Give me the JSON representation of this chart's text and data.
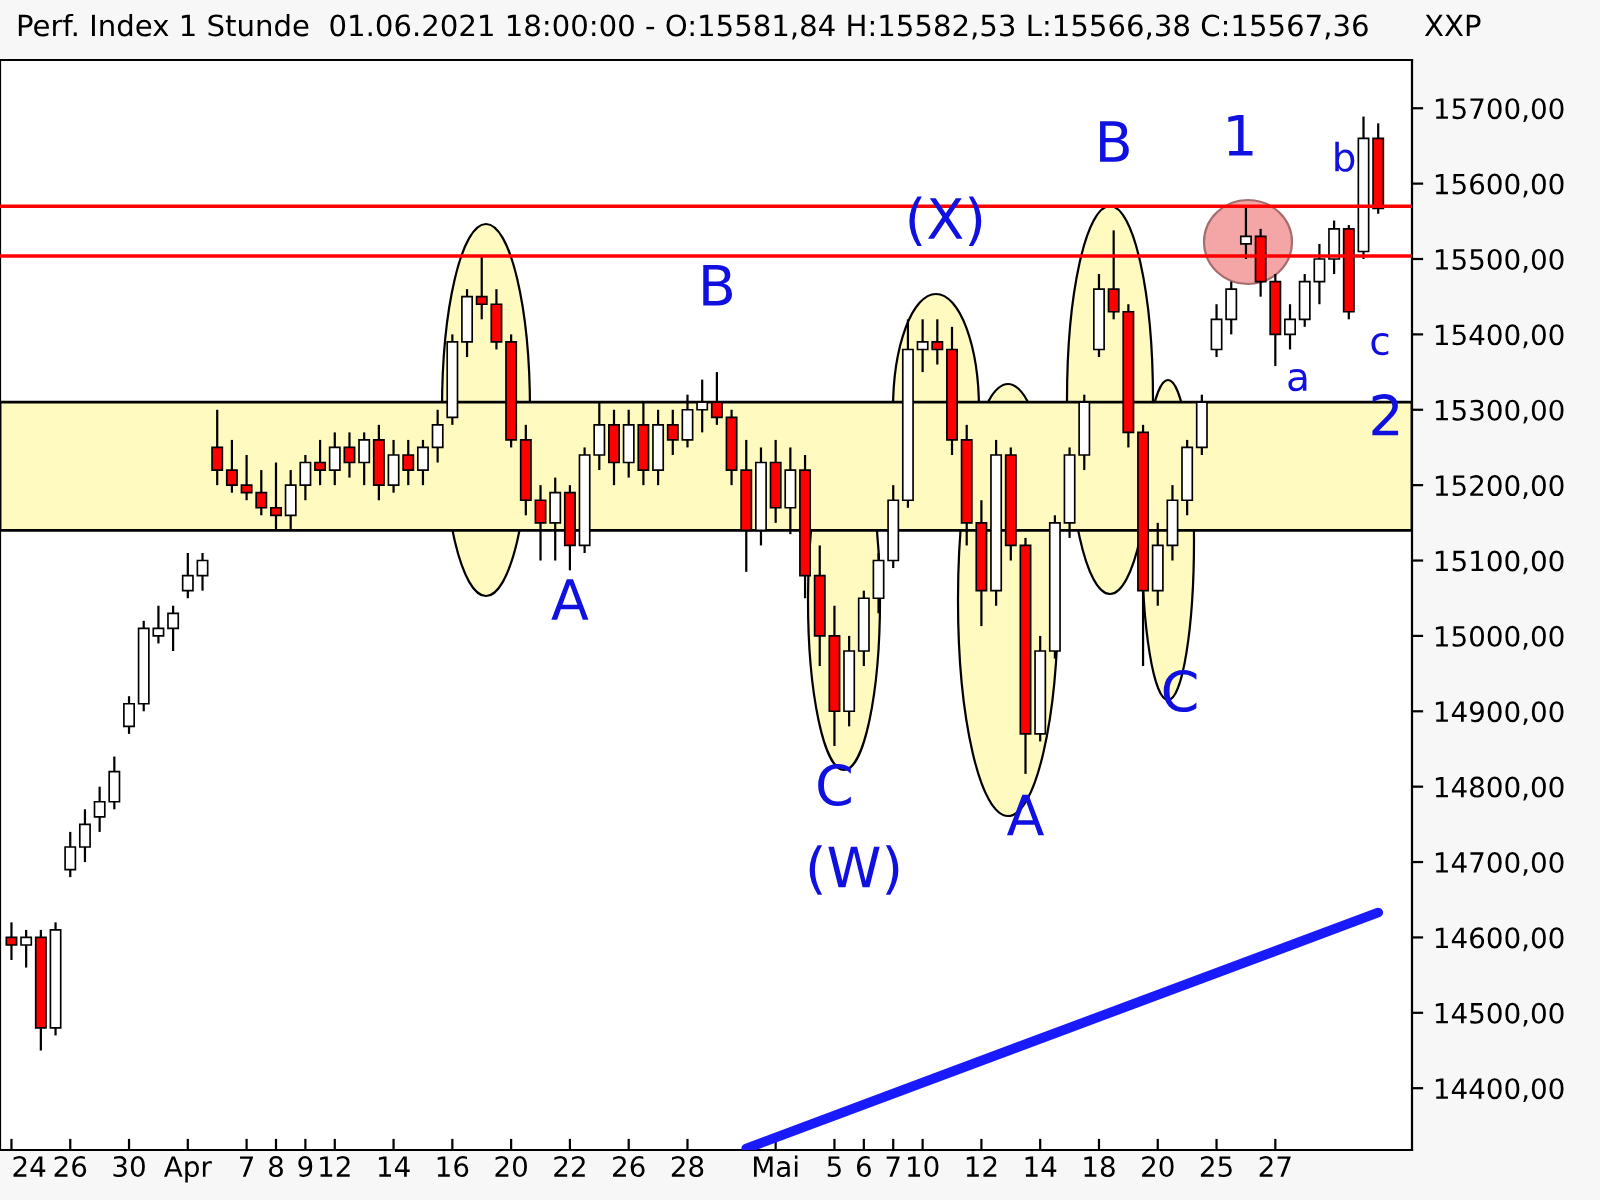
{
  "chart_data": {
    "type": "candlestick",
    "title": "Perf. Index 1 Stunde  01.06.2021 18:00:00 - O:15581,84 H:15582,53 L:15566,38 C:15567,36",
    "categories": [
      "24",
      null,
      null,
      null,
      "26",
      null,
      null,
      null,
      "30",
      null,
      null,
      null,
      "Apr",
      null,
      null,
      null,
      "7",
      null,
      "8",
      null,
      "9",
      null,
      "12",
      null,
      null,
      null,
      "14",
      null,
      null,
      null,
      "16",
      null,
      null,
      null,
      "20",
      null,
      null,
      null,
      "22",
      null,
      null,
      null,
      "26",
      null,
      null,
      null,
      "28",
      null,
      null,
      null,
      null,
      null,
      "Mai",
      null,
      null,
      null,
      "5",
      null,
      "6",
      null,
      "7",
      null,
      "10",
      null,
      null,
      null,
      "12",
      null,
      null,
      null,
      "14",
      null,
      null,
      null,
      "18",
      null,
      null,
      null,
      "20",
      null,
      null,
      null,
      "25",
      null,
      null,
      null,
      "27",
      null,
      null,
      null,
      null,
      null,
      null,
      null
    ],
    "ohlc": [
      [
        14600,
        14620,
        14570,
        14590
      ],
      [
        14590,
        14610,
        14560,
        14600
      ],
      [
        14600,
        14610,
        14450,
        14480
      ],
      [
        14480,
        14620,
        14470,
        14610
      ],
      [
        14690,
        14740,
        14680,
        14720
      ],
      [
        14720,
        14770,
        14700,
        14750
      ],
      [
        14760,
        14800,
        14740,
        14780
      ],
      [
        14780,
        14840,
        14770,
        14820
      ],
      [
        14880,
        14920,
        14870,
        14910
      ],
      [
        14910,
        15020,
        14900,
        15010
      ],
      [
        15000,
        15040,
        14990,
        15010
      ],
      [
        15010,
        15040,
        14980,
        15030
      ],
      [
        15060,
        15110,
        15050,
        15080
      ],
      [
        15080,
        15110,
        15060,
        15100
      ],
      [
        15250,
        15300,
        15200,
        15220
      ],
      [
        15220,
        15260,
        15190,
        15200
      ],
      [
        15200,
        15240,
        15180,
        15190
      ],
      [
        15190,
        15220,
        15160,
        15170
      ],
      [
        15170,
        15230,
        15140,
        15160
      ],
      [
        15160,
        15220,
        15140,
        15200
      ],
      [
        15200,
        15240,
        15180,
        15230
      ],
      [
        15230,
        15260,
        15200,
        15220
      ],
      [
        15220,
        15270,
        15200,
        15250
      ],
      [
        15250,
        15270,
        15210,
        15230
      ],
      [
        15230,
        15270,
        15200,
        15260
      ],
      [
        15260,
        15280,
        15180,
        15200
      ],
      [
        15200,
        15260,
        15190,
        15240
      ],
      [
        15240,
        15260,
        15200,
        15220
      ],
      [
        15220,
        15260,
        15200,
        15250
      ],
      [
        15250,
        15300,
        15230,
        15280
      ],
      [
        15290,
        15400,
        15280,
        15390
      ],
      [
        15390,
        15460,
        15370,
        15450
      ],
      [
        15450,
        15505,
        15420,
        15440
      ],
      [
        15440,
        15460,
        15380,
        15390
      ],
      [
        15390,
        15400,
        15250,
        15260
      ],
      [
        15260,
        15280,
        15160,
        15180
      ],
      [
        15180,
        15200,
        15100,
        15150
      ],
      [
        15150,
        15210,
        15100,
        15190
      ],
      [
        15190,
        15200,
        15087,
        15120
      ],
      [
        15120,
        15250,
        15110,
        15240
      ],
      [
        15240,
        15310,
        15220,
        15280
      ],
      [
        15280,
        15300,
        15200,
        15230
      ],
      [
        15230,
        15300,
        15210,
        15280
      ],
      [
        15280,
        15310,
        15200,
        15220
      ],
      [
        15220,
        15300,
        15200,
        15280
      ],
      [
        15280,
        15300,
        15240,
        15260
      ],
      [
        15260,
        15320,
        15250,
        15300
      ],
      [
        15300,
        15340,
        15270,
        15310
      ],
      [
        15310,
        15350,
        15280,
        15290
      ],
      [
        15290,
        15300,
        15200,
        15220
      ],
      [
        15220,
        15260,
        15085,
        15140
      ],
      [
        15140,
        15250,
        15120,
        15230
      ],
      [
        15230,
        15260,
        15150,
        15170
      ],
      [
        15170,
        15250,
        15135,
        15220
      ],
      [
        15220,
        15240,
        15050,
        15080
      ],
      [
        15080,
        15120,
        14960,
        15000
      ],
      [
        15000,
        15040,
        14854,
        14900
      ],
      [
        14900,
        15000,
        14880,
        14980
      ],
      [
        14980,
        15060,
        14960,
        15050
      ],
      [
        15050,
        15110,
        15030,
        15100
      ],
      [
        15100,
        15200,
        15090,
        15180
      ],
      [
        15180,
        15420,
        15170,
        15380
      ],
      [
        15380,
        15420,
        15350,
        15390
      ],
      [
        15390,
        15420,
        15360,
        15380
      ],
      [
        15380,
        15410,
        15240,
        15260
      ],
      [
        15260,
        15280,
        15120,
        15150
      ],
      [
        15150,
        15180,
        15013,
        15060
      ],
      [
        15060,
        15260,
        15040,
        15240
      ],
      [
        15240,
        15250,
        15100,
        15120
      ],
      [
        15120,
        15130,
        14817,
        14870
      ],
      [
        14870,
        15000,
        14860,
        14980
      ],
      [
        14980,
        15160,
        14970,
        15150
      ],
      [
        15150,
        15250,
        15130,
        15240
      ],
      [
        15240,
        15320,
        15220,
        15310
      ],
      [
        15380,
        15480,
        15370,
        15460
      ],
      [
        15460,
        15538,
        15420,
        15430
      ],
      [
        15430,
        15440,
        15250,
        15270
      ],
      [
        15270,
        15280,
        14960,
        15060
      ],
      [
        15060,
        15150,
        15040,
        15120
      ],
      [
        15120,
        15200,
        15100,
        15180
      ],
      [
        15180,
        15260,
        15160,
        15250
      ],
      [
        15250,
        15320,
        15240,
        15310
      ],
      [
        15380,
        15440,
        15370,
        15420
      ],
      [
        15420,
        15470,
        15400,
        15460
      ],
      [
        15520,
        15570,
        15500,
        15530
      ],
      [
        15530,
        15540,
        15450,
        15470
      ],
      [
        15470,
        15480,
        15358,
        15400
      ],
      [
        15400,
        15440,
        15380,
        15420
      ],
      [
        15420,
        15480,
        15410,
        15470
      ],
      [
        15470,
        15520,
        15440,
        15500
      ],
      [
        15500,
        15551,
        15480,
        15540
      ],
      [
        15540,
        15545,
        15420,
        15430
      ],
      [
        15510,
        15689,
        15500,
        15660
      ],
      [
        15660,
        15680,
        15560,
        15567
      ]
    ],
    "series": [
      {
        "type": "line",
        "color": "#1a1aff",
        "values": [
          null,
          null,
          null,
          null,
          null,
          null,
          null,
          null,
          null,
          null,
          null,
          null,
          null,
          null,
          null,
          null,
          null,
          null,
          null,
          null,
          null,
          null,
          null,
          null,
          null,
          null,
          null,
          null,
          null,
          null,
          null,
          null,
          null,
          null,
          null,
          null,
          null,
          null,
          null,
          null,
          null,
          null,
          null,
          null,
          null,
          null,
          null,
          null,
          null,
          null,
          14320,
          null,
          null,
          null,
          null,
          null,
          null,
          null,
          null,
          null,
          null,
          null,
          null,
          null,
          null,
          null,
          null,
          null,
          null,
          null,
          null,
          null,
          null,
          null,
          null,
          null,
          null,
          null,
          null,
          null,
          null,
          null,
          null,
          null,
          null,
          null,
          null,
          null,
          null,
          null,
          null,
          null,
          null,
          14633
        ]
      }
    ],
    "ylim": [
      14318,
      15764
    ],
    "yticks": [
      {
        "value": 14400,
        "label": "14400,00"
      },
      {
        "value": 14500,
        "label": "14500,00"
      },
      {
        "value": 14600,
        "label": "14600,00"
      },
      {
        "value": 14700,
        "label": "14700,00"
      },
      {
        "value": 14800,
        "label": "14800,00"
      },
      {
        "value": 14900,
        "label": "14900,00"
      },
      {
        "value": 15000,
        "label": "15000,00"
      },
      {
        "value": 15100,
        "label": "15100,00"
      },
      {
        "value": 15200,
        "label": "15200,00"
      },
      {
        "value": 15300,
        "label": "15300,00"
      },
      {
        "value": 15400,
        "label": "15400,00"
      },
      {
        "value": 15500,
        "label": "15500,00"
      },
      {
        "value": 15600,
        "label": "15600,00"
      },
      {
        "value": 15700,
        "label": "15700,00"
      }
    ],
    "ref_lines": [
      {
        "axis": "y",
        "value": 15504,
        "color": "#ff0000"
      },
      {
        "axis": "y",
        "value": 15570,
        "color": "#ff0000"
      }
    ],
    "bands": [
      {
        "axis": "y",
        "from": 15140,
        "to": 15310,
        "color": "#fffac0"
      }
    ],
    "annotations": [
      "XXP",
      {
        "text": "B",
        "y": 15350
      },
      {
        "text": "A",
        "y": 15087
      },
      {
        "text": "C",
        "y": 14854
      },
      "(W)",
      {
        "text": "(X)",
        "y": 15420
      },
      {
        "text": "B",
        "y": 15538
      },
      {
        "text": "A",
        "y": 14817
      },
      "C",
      {
        "text": "1",
        "y": 15570
      },
      {
        "text": "b",
        "y": 15551
      },
      "a",
      "c",
      "2"
    ]
  }
}
